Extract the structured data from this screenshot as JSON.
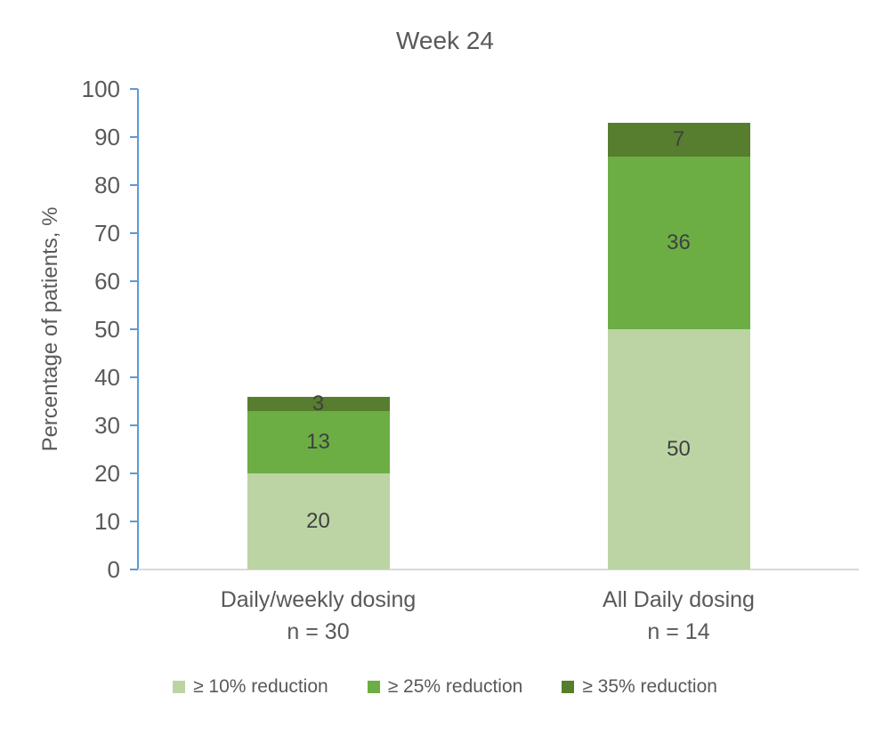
{
  "chart_data": {
    "type": "bar",
    "stacked": true,
    "title": "Week 24",
    "ylabel": "Percentage of patients, %",
    "ylim": [
      0,
      100
    ],
    "ytick_step": 10,
    "grid": false,
    "legend_position": "bottom",
    "categories": [
      {
        "label": "Daily/weekly dosing",
        "sublabel": "n = 30"
      },
      {
        "label": "All Daily dosing",
        "sublabel": "n = 14"
      }
    ],
    "series": [
      {
        "name": "≥ 10% reduction",
        "color": "#bcd4a4",
        "values": [
          20,
          50
        ]
      },
      {
        "name": "≥ 25% reduction",
        "color": "#6cae44",
        "values": [
          13,
          36
        ]
      },
      {
        "name": "≥ 35% reduction",
        "color": "#567e2e",
        "values": [
          3,
          7
        ]
      }
    ],
    "totals": [
      36,
      93
    ],
    "layout_colors": {
      "y_axis_line": "#5b9bd5",
      "x_axis_line": "#d9d9d9",
      "tick_text": "#595959",
      "data_label_text": "#404040",
      "background": "#ffffff"
    }
  }
}
